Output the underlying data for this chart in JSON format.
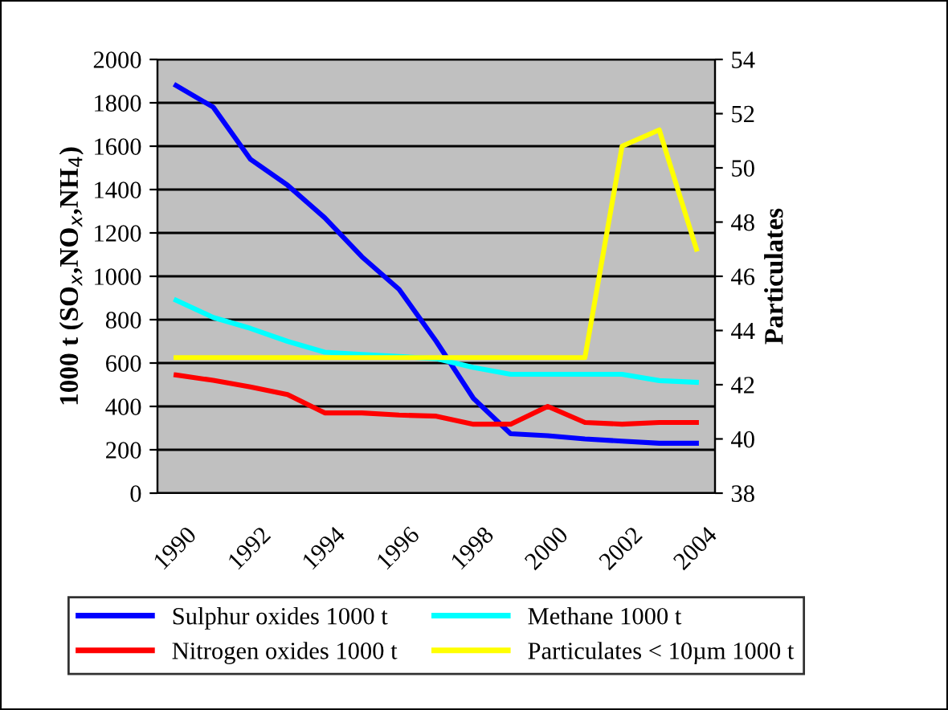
{
  "chart_data": {
    "type": "line",
    "ylabel": "1000 t (SO$_{x}$,NO$_{x}$,NH$_{4}$)",
    "y2label": "Particulates",
    "categories": [
      "1990",
      null,
      "1992",
      null,
      "1994",
      null,
      "1996",
      null,
      "1998",
      null,
      "2000",
      null,
      "2002",
      null,
      "2004"
    ],
    "series": [
      {
        "name": "Sulphur oxides 1000 t",
        "color": "#0000ff",
        "values": [
          1880,
          1780,
          1540,
          1420,
          1270,
          1090,
          940,
          700,
          437,
          274,
          265,
          250,
          240,
          230,
          230
        ]
      },
      {
        "name": "Nitrogen oxides 1000 t",
        "color": "#ff0000",
        "values": [
          545,
          520,
          490,
          455,
          370,
          370,
          360,
          355,
          318,
          318,
          400,
          326,
          318,
          326,
          326
        ]
      },
      {
        "name": "Methane 1000 t",
        "color": "#00ffff",
        "values": [
          890,
          810,
          760,
          700,
          650,
          640,
          630,
          620,
          580,
          548,
          548,
          548,
          548,
          519,
          511
        ]
      },
      {
        "name": "Particulates < 10µm 1000 t",
        "color": "#ffff00",
        "axis": "y2",
        "values": [
          43,
          43,
          43,
          43,
          43,
          43,
          43,
          43,
          43,
          43,
          43,
          43,
          50.8,
          51.4,
          47.0
        ]
      }
    ],
    "ylim": [
      0,
      2000
    ],
    "yticks": [
      0,
      200,
      400,
      600,
      800,
      1000,
      1200,
      1400,
      1600,
      1800,
      2000
    ],
    "y2lim": [
      38,
      54
    ],
    "y2ticks": [
      38,
      40,
      42,
      44,
      46,
      48,
      50,
      52,
      54
    ],
    "grid": "y",
    "legend": "bottom",
    "marker": "none",
    "line_style": "solid"
  }
}
